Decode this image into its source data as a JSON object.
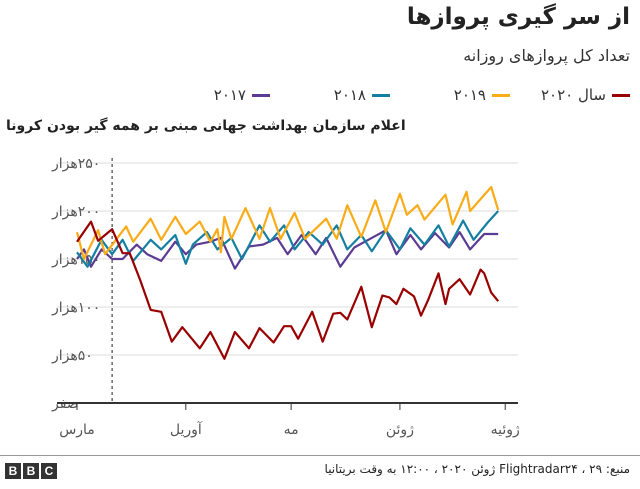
{
  "header": {
    "title": "از سر گیری پروازها",
    "subtitle": "تعداد کل پروازهای روزانه"
  },
  "annotation": "اعلام سازمان بهداشت جهانی مبنی بر همه گیر بودن کرونا",
  "footer": {
    "source": "منبع: Flightradar۲۴ ، ۲۹ ژوئن ۲۰۲۰ ، ۱۲:۰۰ به وقت بریتانیا",
    "logo": "BBC"
  },
  "chart_data": {
    "type": "line",
    "title": "از سر گیری پروازها",
    "subtitle": "تعداد کل پروازهای روزانه",
    "y_unit": "flights per day",
    "ylim": [
      0,
      250000
    ],
    "y_ticks": [
      {
        "value": 0,
        "label": "صفر"
      },
      {
        "value": 50000,
        "label": "۵۰هزار"
      },
      {
        "value": 100000,
        "label": "۱۰۰هزار"
      },
      {
        "value": 150000,
        "label": "۱۵۰هزار"
      },
      {
        "value": 200000,
        "label": "۲۰۰هزار"
      },
      {
        "value": 250000,
        "label": "۲۵۰هزار"
      }
    ],
    "x_ticks": [
      {
        "date": "03-01",
        "label": "مارس"
      },
      {
        "date": "04-01",
        "label": "آوریل"
      },
      {
        "date": "05-01",
        "label": "مه"
      },
      {
        "date": "06-01",
        "label": "ژوئن"
      },
      {
        "date": "07-01",
        "label": "ژوئیه"
      }
    ],
    "xlim": [
      "03-01",
      "07-03"
    ],
    "grid": true,
    "legend_position": "top",
    "annotation": {
      "date": "03-11",
      "text": "اعلام سازمان بهداشت جهانی مبنی بر همه گیر بودن کرونا",
      "style": "dashed vertical line"
    },
    "series": [
      {
        "name": "سال ۲۰۲۰",
        "color": "#990000",
        "points": [
          [
            "03-01",
            168000
          ],
          [
            "03-05",
            189000
          ],
          [
            "03-07",
            169000
          ],
          [
            "03-09",
            175000
          ],
          [
            "03-11",
            181000
          ],
          [
            "03-14",
            156000
          ],
          [
            "03-16",
            156000
          ],
          [
            "03-19",
            128000
          ],
          [
            "03-22",
            97000
          ],
          [
            "03-25",
            95000
          ],
          [
            "03-28",
            64000
          ],
          [
            "03-31",
            79000
          ],
          [
            "04-05",
            57000
          ],
          [
            "04-08",
            74000
          ],
          [
            "04-12",
            46000
          ],
          [
            "04-15",
            74000
          ],
          [
            "04-19",
            57000
          ],
          [
            "04-22",
            78000
          ],
          [
            "04-26",
            63000
          ],
          [
            "04-29",
            80000
          ],
          [
            "05-01",
            80000
          ],
          [
            "05-03",
            67000
          ],
          [
            "05-07",
            95000
          ],
          [
            "05-10",
            64000
          ],
          [
            "05-13",
            93000
          ],
          [
            "05-15",
            94000
          ],
          [
            "05-17",
            87000
          ],
          [
            "05-21",
            121000
          ],
          [
            "05-24",
            79000
          ],
          [
            "05-27",
            112000
          ],
          [
            "05-29",
            110000
          ],
          [
            "05-31",
            103000
          ],
          [
            "06-02",
            119000
          ],
          [
            "06-05",
            111000
          ],
          [
            "06-07",
            91000
          ],
          [
            "06-09",
            107000
          ],
          [
            "06-12",
            135000
          ],
          [
            "06-14",
            103000
          ],
          [
            "06-15",
            119000
          ],
          [
            "06-18",
            129000
          ],
          [
            "06-21",
            113000
          ],
          [
            "06-24",
            139000
          ],
          [
            "06-25",
            135000
          ],
          [
            "06-27",
            115000
          ],
          [
            "06-29",
            106000
          ]
        ]
      },
      {
        "name": "۲۰۱۹",
        "color": "#FAAB18",
        "points": [
          [
            "03-01",
            178000
          ],
          [
            "03-03",
            150000
          ],
          [
            "03-07",
            180000
          ],
          [
            "03-09",
            155000
          ],
          [
            "03-15",
            184000
          ],
          [
            "03-17",
            168000
          ],
          [
            "03-22",
            192000
          ],
          [
            "03-25",
            170000
          ],
          [
            "03-29",
            194000
          ],
          [
            "04-01",
            176000
          ],
          [
            "04-05",
            189000
          ],
          [
            "04-08",
            168000
          ],
          [
            "04-10",
            181000
          ],
          [
            "04-11",
            157000
          ],
          [
            "04-12",
            194000
          ],
          [
            "04-14",
            171000
          ],
          [
            "04-18",
            203000
          ],
          [
            "04-22",
            171000
          ],
          [
            "04-25",
            203000
          ],
          [
            "04-28",
            171000
          ],
          [
            "05-02",
            198000
          ],
          [
            "05-05",
            171000
          ],
          [
            "05-11",
            192000
          ],
          [
            "05-14",
            171000
          ],
          [
            "05-17",
            206000
          ],
          [
            "05-21",
            173000
          ],
          [
            "05-25",
            211000
          ],
          [
            "05-28",
            178000
          ],
          [
            "06-01",
            218000
          ],
          [
            "06-03",
            196000
          ],
          [
            "06-06",
            206000
          ],
          [
            "06-08",
            191000
          ],
          [
            "06-14",
            217000
          ],
          [
            "06-16",
            186000
          ],
          [
            "06-20",
            220000
          ],
          [
            "06-21",
            200000
          ],
          [
            "06-27",
            225000
          ],
          [
            "06-29",
            201000
          ]
        ]
      },
      {
        "name": "۲۰۱۸",
        "color": "#1380A1",
        "points": [
          [
            "03-01",
            157000
          ],
          [
            "03-04",
            142000
          ],
          [
            "03-08",
            170000
          ],
          [
            "03-11",
            155000
          ],
          [
            "03-14",
            170000
          ],
          [
            "03-17",
            148000
          ],
          [
            "03-22",
            170000
          ],
          [
            "03-25",
            160000
          ],
          [
            "03-29",
            175000
          ],
          [
            "04-01",
            145000
          ],
          [
            "04-03",
            165000
          ],
          [
            "04-07",
            178000
          ],
          [
            "04-10",
            160000
          ],
          [
            "04-14",
            172000
          ],
          [
            "04-17",
            150000
          ],
          [
            "04-22",
            185000
          ],
          [
            "04-25",
            168000
          ],
          [
            "04-29",
            185000
          ],
          [
            "05-02",
            160000
          ],
          [
            "05-06",
            178000
          ],
          [
            "05-10",
            165000
          ],
          [
            "05-14",
            185000
          ],
          [
            "05-17",
            160000
          ],
          [
            "05-21",
            175000
          ],
          [
            "05-24",
            158000
          ],
          [
            "05-28",
            180000
          ],
          [
            "06-01",
            160000
          ],
          [
            "06-04",
            182000
          ],
          [
            "06-08",
            165000
          ],
          [
            "06-12",
            185000
          ],
          [
            "06-15",
            163000
          ],
          [
            "06-19",
            190000
          ],
          [
            "06-22",
            170000
          ],
          [
            "06-26",
            188000
          ],
          [
            "06-29",
            200000
          ]
        ]
      },
      {
        "name": "۲۰۱۷",
        "color": "#588300",
        "points": [
          [
            "03-01",
            150000
          ],
          [
            "03-03",
            160000
          ],
          [
            "03-05",
            142000
          ],
          [
            "03-08",
            160000
          ],
          [
            "03-11",
            150000
          ],
          [
            "03-14",
            150000
          ],
          [
            "03-18",
            165000
          ],
          [
            "03-21",
            155000
          ],
          [
            "03-25",
            148000
          ],
          [
            "03-29",
            168000
          ],
          [
            "04-01",
            155000
          ],
          [
            "04-04",
            165000
          ],
          [
            "04-08",
            168000
          ],
          [
            "04-11",
            172000
          ],
          [
            "04-15",
            140000
          ],
          [
            "04-19",
            163000
          ],
          [
            "04-23",
            165000
          ],
          [
            "04-27",
            172000
          ],
          [
            "04-30",
            155000
          ],
          [
            "05-04",
            175000
          ],
          [
            "05-08",
            155000
          ],
          [
            "05-11",
            172000
          ],
          [
            "05-15",
            142000
          ],
          [
            "05-19",
            162000
          ],
          [
            "05-23",
            170000
          ],
          [
            "05-28",
            180000
          ],
          [
            "05-31",
            155000
          ],
          [
            "06-04",
            175000
          ],
          [
            "06-07",
            160000
          ],
          [
            "06-11",
            177000
          ],
          [
            "06-15",
            162000
          ],
          [
            "06-18",
            178000
          ],
          [
            "06-21",
            160000
          ],
          [
            "06-25",
            176000
          ],
          [
            "06-29",
            176000
          ]
        ]
      }
    ]
  }
}
